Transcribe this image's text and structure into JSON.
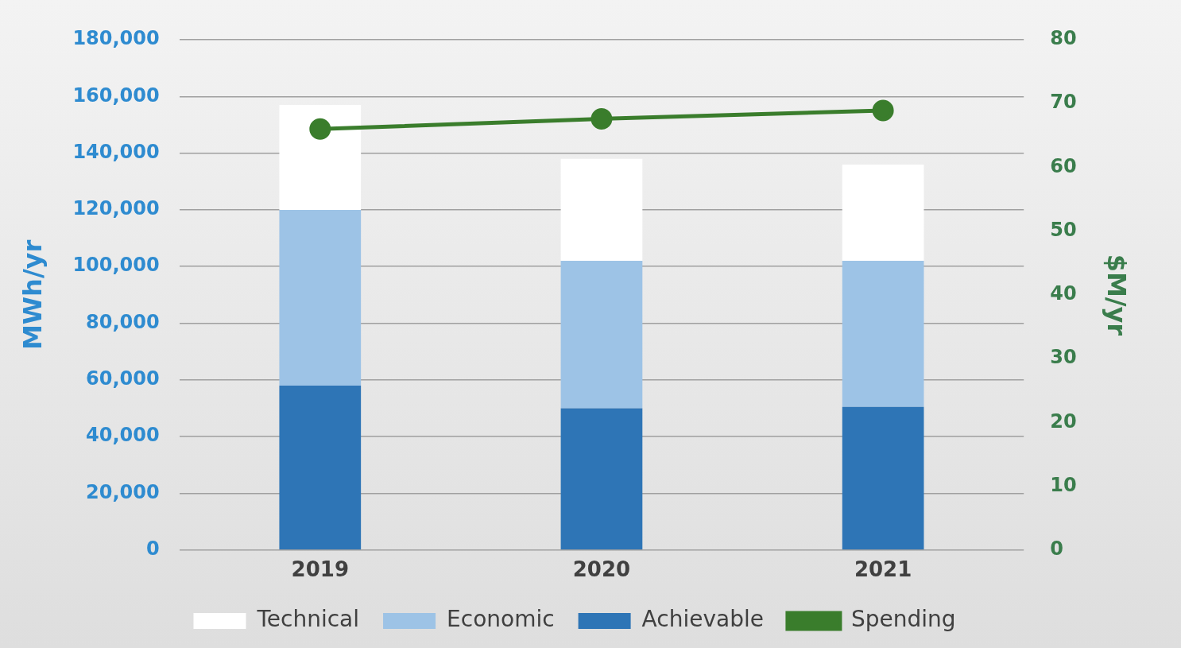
{
  "chart_data": {
    "type": "bar",
    "stacked": true,
    "categories": [
      "2019",
      "2020",
      "2021"
    ],
    "series": [
      {
        "name": "Achievable",
        "color": "#2e75b6",
        "values": [
          58000,
          50000,
          50500
        ]
      },
      {
        "name": "Economic",
        "color": "#9dc3e6",
        "values": [
          62000,
          52000,
          51500
        ]
      },
      {
        "name": "Technical",
        "color": "#ffffff",
        "values": [
          37000,
          36000,
          34000
        ]
      },
      {
        "name": "Spending",
        "type": "line",
        "axis": "y2",
        "color": "#3a7d2c",
        "values": [
          66,
          67.6,
          68.9
        ]
      }
    ],
    "ylabel": "MWh/yr",
    "y2label": "$M/yr",
    "ylim": [
      0,
      180000
    ],
    "yticks": [
      0,
      {
        "value": 20000,
        "label": "20,000"
      },
      {
        "value": 40000,
        "label": "40,000"
      },
      {
        "value": 60000,
        "label": "60,000"
      },
      {
        "value": 80000,
        "label": "80,000"
      },
      {
        "value": 100000,
        "label": "100,000"
      },
      {
        "value": 120000,
        "label": "120,000"
      },
      {
        "value": 140000,
        "label": "140,000"
      },
      {
        "value": 160000,
        "label": "160,000"
      },
      {
        "value": 180000,
        "label": "180,000"
      }
    ],
    "y2lim": [
      0,
      80
    ],
    "y2ticks": [
      0,
      10,
      20,
      30,
      40,
      50,
      60,
      70,
      80
    ],
    "grid": "y",
    "legend": "bottom",
    "marker": "circle",
    "line_style": "solid"
  }
}
